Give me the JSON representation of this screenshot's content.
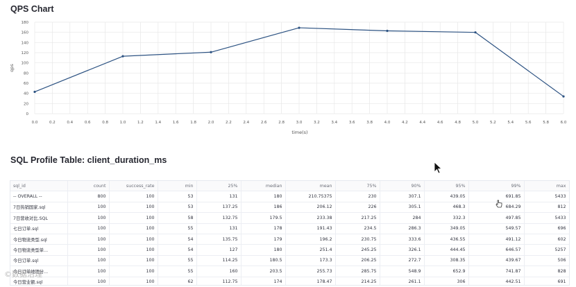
{
  "chart_section": {
    "title": "QPS Chart"
  },
  "chart_data": {
    "type": "line",
    "x": [
      0.0,
      1.0,
      2.0,
      3.0,
      4.0,
      5.0,
      6.0
    ],
    "values": [
      43,
      113,
      121,
      169,
      163,
      160,
      34
    ],
    "xlabel": "time(s)",
    "ylabel": "qps",
    "xlim": [
      0.0,
      6.0
    ],
    "ylim": [
      0,
      180
    ],
    "x_ticks": [
      "0.0",
      "0.2",
      "0.4",
      "0.6",
      "0.8",
      "1.0",
      "1.2",
      "1.4",
      "1.6",
      "1.8",
      "2.0",
      "2.2",
      "2.4",
      "2.6",
      "2.8",
      "3.0",
      "3.2",
      "3.4",
      "3.6",
      "3.8",
      "4.0",
      "4.2",
      "4.4",
      "4.6",
      "4.8",
      "5.0",
      "5.2",
      "5.4",
      "5.6",
      "5.8",
      "6.0"
    ],
    "y_ticks": [
      "0",
      "20",
      "40",
      "60",
      "80",
      "100",
      "120",
      "140",
      "160",
      "180"
    ],
    "grid": true,
    "line_color": "#2c5282"
  },
  "table_section": {
    "title": "SQL Profile Table: client_duration_ms",
    "columns": [
      "sql_id",
      "count",
      "success_rate",
      "min",
      "25%",
      "median",
      "mean",
      "75%",
      "90%",
      "95%",
      "99%",
      "max"
    ],
    "rows": [
      [
        "-- OVERALL --",
        "800",
        "100",
        "53",
        "131",
        "180",
        "210.75375",
        "230",
        "307.1",
        "439.05",
        "691.85",
        "5433"
      ],
      [
        "7日热销国家.sql",
        "100",
        "100",
        "53",
        "137.25",
        "186",
        "206.12",
        "226",
        "305.1",
        "468.3",
        "684.29",
        "812"
      ],
      [
        "7日营收对比.SQL",
        "100",
        "100",
        "58",
        "132.75",
        "179.5",
        "233.38",
        "217.25",
        "284",
        "332.3",
        "497.85",
        "5433"
      ],
      [
        "七日订单.sql",
        "100",
        "100",
        "55",
        "131",
        "178",
        "191.43",
        "234.5",
        "286.3",
        "349.05",
        "549.57",
        "696"
      ],
      [
        "今日物流类型.sql",
        "100",
        "100",
        "54",
        "135.75",
        "179",
        "196.2",
        "230.75",
        "333.6",
        "436.55",
        "491.12",
        "602"
      ],
      [
        "今日物流类型单...",
        "100",
        "100",
        "54",
        "127",
        "180",
        "251.4",
        "245.25",
        "326.1",
        "444.45",
        "646.57",
        "5257"
      ],
      [
        "今日订单.sql",
        "100",
        "100",
        "55",
        "114.25",
        "180.5",
        "173.3",
        "206.25",
        "272.7",
        "308.35",
        "439.67",
        "506"
      ],
      [
        "今日订单地理分...",
        "100",
        "100",
        "55",
        "160",
        "203.5",
        "255.73",
        "285.75",
        "548.9",
        "652.9",
        "741.87",
        "828"
      ],
      [
        "今日营业额.sql",
        "100",
        "100",
        "62",
        "112.75",
        "174",
        "178.47",
        "214.25",
        "261.1",
        "306",
        "442.51",
        "691"
      ]
    ]
  },
  "watermark": "©数据治理"
}
